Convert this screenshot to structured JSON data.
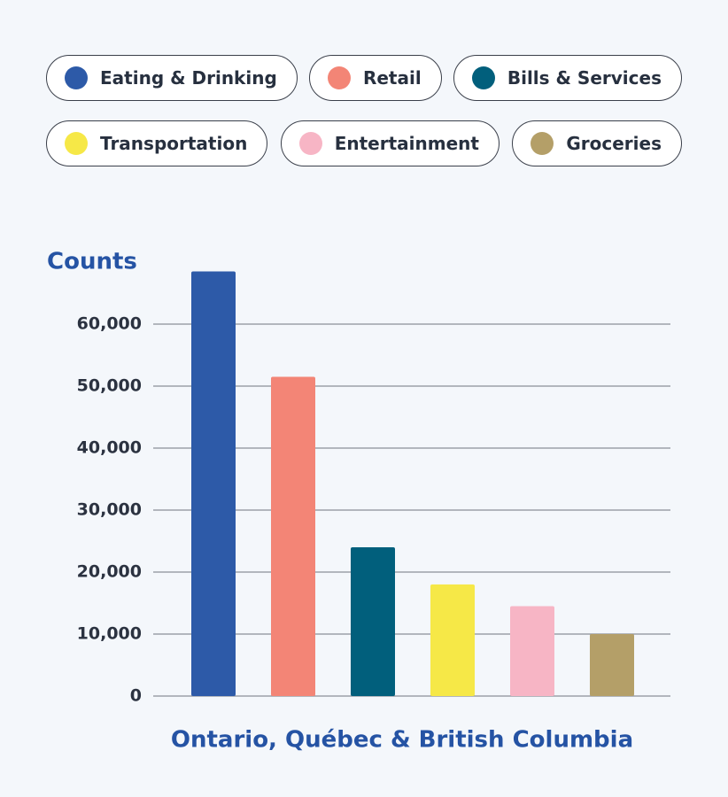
{
  "chart_data": {
    "type": "bar",
    "categories": [
      "Eating & Drinking",
      "Retail",
      "Bills & Services",
      "Transportation",
      "Entertainment",
      "Groceries"
    ],
    "values": [
      68500,
      51500,
      24000,
      18000,
      14500,
      10000
    ],
    "colors": [
      "#2d5aa8",
      "#f38576",
      "#015f7c",
      "#f6e847",
      "#f7b5c5",
      "#b49f68"
    ],
    "ylabel": "Counts",
    "xlabel": "Ontario, Québec & British Columbia",
    "ylim": [
      0,
      70000
    ],
    "yticks": [
      0,
      {
        "value": 10000,
        "label": "10,000"
      },
      {
        "value": 20000,
        "label": "20,000"
      },
      {
        "value": 30000,
        "label": "30,000"
      },
      {
        "value": 40000,
        "label": "40,000"
      },
      {
        "value": 50000,
        "label": "50,000"
      },
      {
        "value": 60000,
        "label": "60,000"
      }
    ],
    "grid": true
  }
}
